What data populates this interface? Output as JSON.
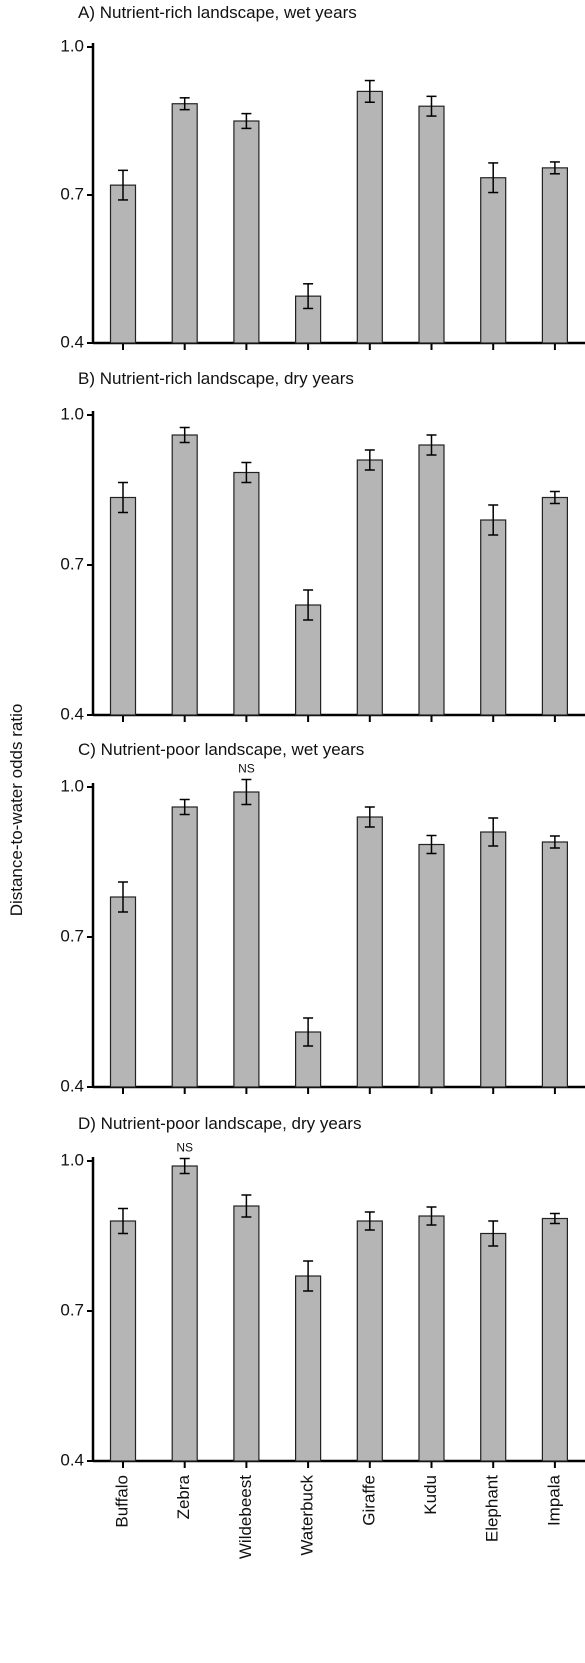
{
  "ylabel": "Distance-to-water odds ratio",
  "chart_data": [
    {
      "type": "bar",
      "title": "A) Nutrient-rich landscape, wet years",
      "values": [
        0.72,
        0.885,
        0.85,
        0.495,
        0.91,
        0.88,
        0.735,
        0.755
      ],
      "errors": [
        0.03,
        0.012,
        0.015,
        0.025,
        0.022,
        0.02,
        0.03,
        0.012
      ],
      "color": "#b5b5b5",
      "ylim": [
        0.4,
        1.0
      ],
      "yticks": [
        0.4,
        0.7,
        {
          "value": 1.0,
          "label": "1.0"
        }
      ]
    },
    {
      "type": "bar",
      "title": "B) Nutrient-rich landscape, dry years",
      "values": [
        0.835,
        0.96,
        0.885,
        0.62,
        0.91,
        0.94,
        0.79,
        0.835
      ],
      "errors": [
        0.03,
        0.015,
        0.02,
        0.03,
        0.02,
        0.02,
        0.03,
        0.012
      ],
      "color": "#b5b5b5",
      "ylim": [
        0.4,
        1.0
      ],
      "yticks": [
        0.4,
        0.7,
        {
          "value": 1.0,
          "label": "1.0"
        }
      ]
    },
    {
      "type": "bar",
      "title": "C) Nutrient-poor landscape, wet years",
      "values": [
        0.78,
        0.96,
        0.99,
        0.51,
        0.94,
        0.885,
        0.91,
        0.89
      ],
      "errors": [
        0.03,
        0.015,
        0.025,
        0.028,
        0.02,
        0.018,
        0.028,
        0.012
      ],
      "color": "#b5b5b5",
      "ylim": [
        0.4,
        1.0
      ],
      "yticks": [
        0.4,
        0.7,
        {
          "value": 1.0,
          "label": "1.0"
        }
      ],
      "annotations": [
        {
          "text": "NS",
          "bar": 2
        }
      ]
    },
    {
      "type": "bar",
      "title": "D) Nutrient-poor landscape, dry years",
      "categories": [
        "Buffalo",
        "Zebra",
        "Wildebeest",
        "Waterbuck",
        "Giraffe",
        "Kudu",
        "Elephant",
        "Impala"
      ],
      "values": [
        0.88,
        0.99,
        0.91,
        0.77,
        0.88,
        0.89,
        0.855,
        0.885
      ],
      "errors": [
        0.025,
        0.015,
        0.022,
        0.03,
        0.018,
        0.018,
        0.025,
        0.01
      ],
      "color": "#b5b5b5",
      "ylim": [
        0.4,
        1.0
      ],
      "yticks": [
        0.4,
        0.7,
        {
          "value": 1.0,
          "label": "1.0"
        }
      ],
      "annotations": [
        {
          "text": "NS",
          "bar": 1
        }
      ]
    }
  ]
}
